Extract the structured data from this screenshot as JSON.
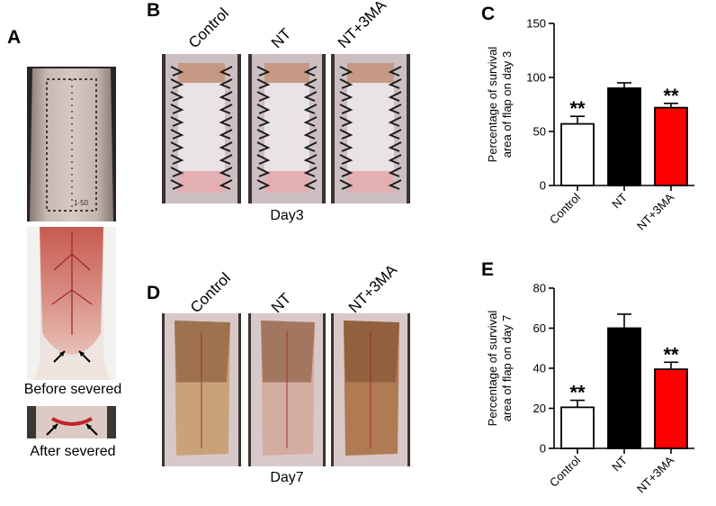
{
  "panels": {
    "a": {
      "letter": "A",
      "before_label": "Before severed",
      "after_label": "After severed"
    },
    "b": {
      "letter": "B",
      "day_label": "Day3",
      "groups": [
        "Control",
        "NT",
        "NT+3MA"
      ]
    },
    "c": {
      "letter": "C"
    },
    "d": {
      "letter": "D",
      "day_label": "Day7",
      "groups": [
        "Control",
        "NT",
        "NT+3MA"
      ]
    },
    "e": {
      "letter": "E"
    }
  },
  "chart_data": [
    {
      "type": "bar",
      "panel": "C",
      "categories": [
        "Control",
        "NT",
        "NT+3MA"
      ],
      "values": [
        57,
        90,
        72
      ],
      "errors": [
        7,
        5,
        4
      ],
      "significance": [
        "**",
        "",
        "**"
      ],
      "colors": [
        "#ffffff",
        "#000000",
        "#ff0000"
      ],
      "title": "",
      "xlabel": "",
      "ylabel_lines": [
        "Percentage of survival",
        "area of flap on day 3"
      ],
      "ylim": [
        0,
        150
      ],
      "yticks": [
        0,
        50,
        100,
        150
      ]
    },
    {
      "type": "bar",
      "panel": "E",
      "categories": [
        "Control",
        "NT",
        "NT+3MA"
      ],
      "values": [
        20.5,
        60,
        39.5
      ],
      "errors": [
        3.5,
        7,
        3.5
      ],
      "significance": [
        "**",
        "",
        "**"
      ],
      "colors": [
        "#ffffff",
        "#000000",
        "#ff0000"
      ],
      "title": "",
      "xlabel": "",
      "ylabel_lines": [
        "Percentage of survival",
        "area of flap on day 7"
      ],
      "ylim": [
        0,
        80
      ],
      "yticks": [
        0,
        20,
        40,
        60,
        80
      ]
    }
  ]
}
